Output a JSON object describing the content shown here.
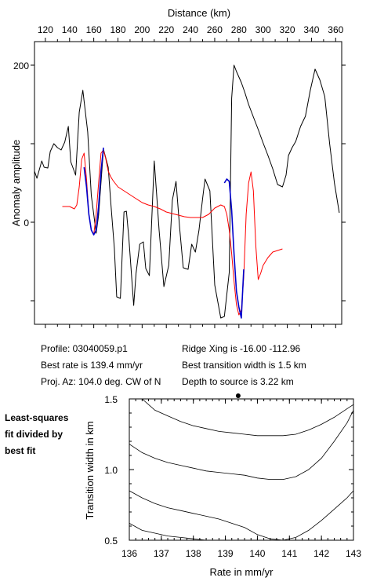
{
  "top_chart": {
    "xlabel": "Distance (km)",
    "ylabel": "Anomaly amplitude",
    "x_ticks": [
      120,
      140,
      160,
      180,
      200,
      220,
      240,
      260,
      280,
      300,
      320,
      340,
      360
    ],
    "y_tick_labels": [
      "200",
      "0"
    ]
  },
  "info": {
    "profile": "Profile: 03040059.p1",
    "best_rate": "Best rate is 139.4 mm/yr",
    "proj_az": "Proj. Az: 104.0 deg. CW of N",
    "ridge_xing": "Ridge Xing is -16.00 -112.96",
    "transition": "Best transition width is 1.5 km",
    "depth": "Depth to source is   3.22 km"
  },
  "side_note": [
    "Least-squares",
    "fit divided by",
    "best fit"
  ],
  "bottom_chart": {
    "xlabel": "Rate in mm/yr",
    "ylabel": "Transition width in km",
    "x_tick_labels": [
      "136",
      "137",
      "138",
      "139",
      "140",
      "141",
      "142",
      "143"
    ],
    "y_tick_labels": [
      "1.5",
      "1.0",
      "0.5"
    ]
  },
  "colors": {
    "observed": "#000000",
    "model": "#ff0000",
    "fit_segment": "#0000cc"
  },
  "chart_data": [
    {
      "type": "line",
      "xlabel": "Distance (km)",
      "ylabel": "Anomaly amplitude",
      "xlim": [
        111,
        365
      ],
      "ylim": [
        -130,
        230
      ],
      "series": [
        {
          "color": "#000000",
          "x": [
            111,
            113,
            117,
            119,
            122,
            124,
            127,
            130,
            133,
            136,
            139,
            141,
            145,
            148,
            151,
            155,
            158,
            162,
            164,
            168,
            172,
            174,
            177,
            179,
            182,
            185,
            187,
            189,
            193,
            195,
            198,
            201,
            203,
            206,
            210,
            212,
            214,
            218,
            222,
            225,
            228,
            231,
            234,
            238,
            241,
            244,
            247,
            250,
            252,
            256,
            260,
            265,
            268,
            272,
            274,
            276,
            278,
            282,
            285,
            288,
            292,
            296,
            300,
            304,
            308,
            312,
            316,
            319,
            321,
            324,
            327,
            331,
            335,
            339,
            343,
            347,
            351,
            355,
            359,
            363
          ],
          "y": [
            65,
            56,
            78,
            70,
            69,
            90,
            100,
            95,
            92,
            102,
            122,
            77,
            60,
            140,
            168,
            115,
            34,
            -14,
            9,
            93,
            70,
            27,
            -33,
            -95,
            -97,
            13,
            14,
            -20,
            -106,
            -65,
            -28,
            -25,
            -59,
            -68,
            78,
            35,
            -10,
            -82,
            -55,
            28,
            52,
            -7,
            -58,
            -60,
            -28,
            -38,
            -10,
            30,
            55,
            40,
            -80,
            -122,
            -120,
            -64,
            158,
            200,
            192,
            178,
            165,
            150,
            134,
            118,
            101,
            85,
            68,
            48,
            45,
            60,
            85,
            95,
            103,
            122,
            135,
            168,
            195,
            181,
            160,
            100,
            50,
            12
          ]
        },
        {
          "color": "#ff0000",
          "x": [
            134,
            140,
            144,
            146,
            148,
            150,
            152,
            154,
            156,
            158,
            160,
            162,
            164,
            166,
            168,
            170,
            172,
            174,
            176,
            180,
            185,
            190,
            195,
            200,
            205,
            210,
            215,
            220,
            225,
            230,
            235,
            240,
            245,
            250,
            255,
            260,
            265,
            268,
            270,
            272,
            274,
            276,
            278,
            280,
            282,
            284,
            286,
            288,
            290,
            292,
            294,
            296,
            298,
            300,
            304,
            308,
            312,
            316
          ],
          "y": [
            20,
            20,
            17,
            22,
            45,
            80,
            88,
            55,
            10,
            -10,
            -16,
            10,
            50,
            88,
            92,
            80,
            65,
            58,
            53,
            45,
            40,
            35,
            30,
            25,
            22,
            20,
            17,
            13,
            11,
            9,
            7,
            6,
            6,
            6,
            10,
            18,
            22,
            20,
            10,
            -10,
            -40,
            -75,
            -105,
            -118,
            -112,
            -70,
            10,
            50,
            64,
            40,
            -30,
            -73,
            -65,
            -55,
            -45,
            -38,
            -36,
            -34
          ]
        },
        {
          "color": "#0000cc",
          "x": [
            152,
            154,
            156,
            158,
            160,
            162,
            164,
            166,
            168
          ],
          "y": [
            70,
            45,
            10,
            -10,
            -16,
            -10,
            20,
            65,
            95
          ]
        },
        {
          "color": "#0000cc",
          "x": [
            268,
            270,
            272,
            274,
            276,
            278,
            280,
            282,
            284
          ],
          "y": [
            50,
            55,
            52,
            15,
            -40,
            -88,
            -108,
            -122,
            -60
          ]
        }
      ]
    },
    {
      "type": "contour",
      "xlabel": "Rate in mm/yr",
      "ylabel": "Transition width in km",
      "xlim": [
        136,
        143
      ],
      "ylim": [
        0.5,
        1.5
      ],
      "best_fit": {
        "x": 139.4,
        "y": 1.5
      },
      "contours": [
        {
          "x": [
            136.4,
            136.8,
            137.2,
            137.6,
            138.0,
            138.4,
            138.8,
            139.2,
            139.6,
            140.0,
            140.4,
            140.8,
            141.2,
            141.6,
            142.0,
            142.4,
            142.8,
            143.0
          ],
          "y": [
            1.5,
            1.42,
            1.38,
            1.34,
            1.31,
            1.29,
            1.27,
            1.26,
            1.25,
            1.24,
            1.24,
            1.24,
            1.25,
            1.28,
            1.32,
            1.37,
            1.43,
            1.46
          ]
        },
        {
          "x": [
            136.0,
            136.4,
            136.8,
            137.2,
            137.6,
            138.0,
            138.4,
            138.8,
            139.2,
            139.6,
            140.0,
            140.4,
            140.8,
            141.2,
            141.6,
            142.0,
            142.4,
            142.8,
            143.0
          ],
          "y": [
            1.18,
            1.12,
            1.08,
            1.05,
            1.03,
            1.01,
            0.99,
            0.98,
            0.97,
            0.96,
            0.94,
            0.93,
            0.93,
            0.95,
            1.0,
            1.08,
            1.2,
            1.33,
            1.42
          ]
        },
        {
          "x": [
            136.0,
            136.4,
            136.8,
            137.2,
            137.6,
            138.0,
            138.4,
            138.8,
            139.2,
            139.6,
            140.0,
            140.4,
            140.8,
            141.2,
            141.6,
            142.0,
            142.4,
            142.8,
            143.0
          ],
          "y": [
            0.85,
            0.8,
            0.76,
            0.73,
            0.71,
            0.69,
            0.67,
            0.65,
            0.62,
            0.59,
            0.54,
            0.51,
            0.5,
            0.52,
            0.57,
            0.64,
            0.72,
            0.8,
            0.85
          ]
        },
        {
          "x": [
            136.0,
            136.4,
            136.8,
            137.2,
            137.6,
            138.0,
            138.4
          ],
          "y": [
            0.62,
            0.57,
            0.55,
            0.53,
            0.52,
            0.51,
            0.5
          ]
        }
      ]
    }
  ]
}
